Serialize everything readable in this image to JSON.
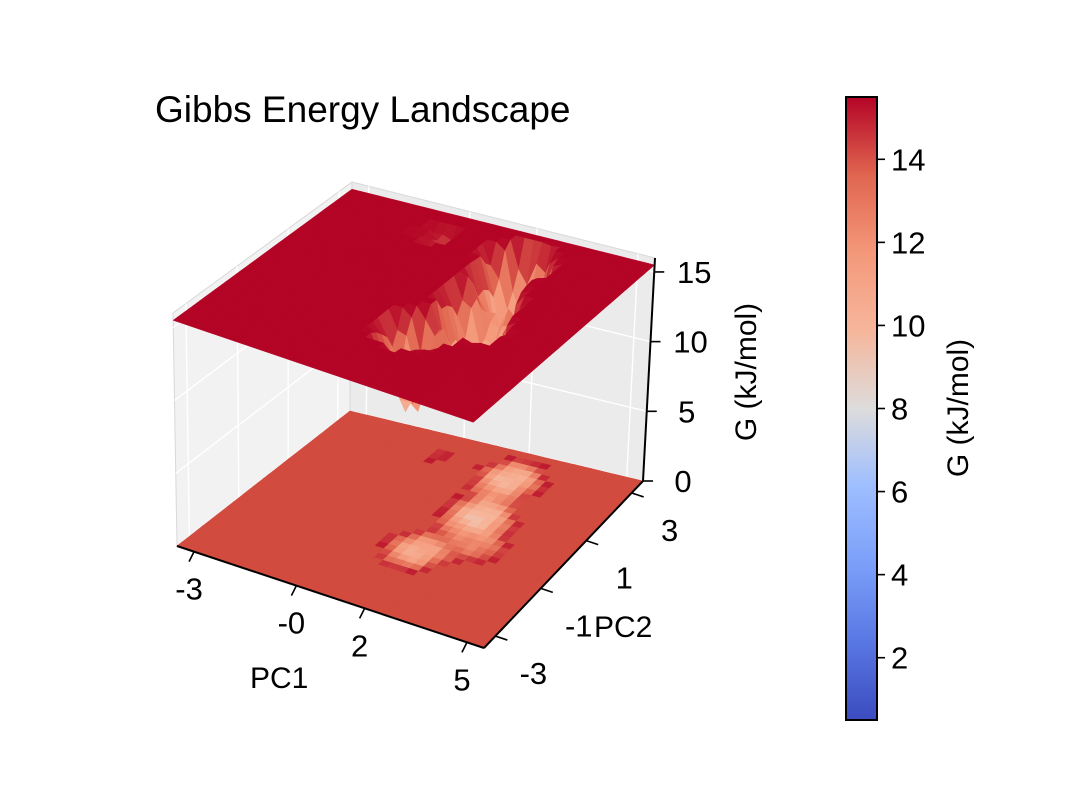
{
  "chart_data": {
    "type": "surface3d",
    "title": "Gibbs Energy Landscape",
    "xlabel": "PC1",
    "ylabel": "PC2",
    "zlabel": "G (kJ/mol)",
    "xticks": [
      "-3",
      "-0",
      "2",
      "5"
    ],
    "yticks": [
      "-3",
      "-1",
      "1",
      "3"
    ],
    "zticks": [
      "0",
      "5",
      "10",
      "15"
    ],
    "xlim": [
      -3.5,
      5.5
    ],
    "ylim": [
      -3.5,
      3.5
    ],
    "zlim": [
      0,
      16
    ],
    "cap_value": 15.5,
    "basins": [
      {
        "pc1": -0.3,
        "pc2": 2.6,
        "depth": 1.0
      },
      {
        "pc1": 2.2,
        "pc2": 2.4,
        "depth": 5.8
      },
      {
        "pc1": 2.4,
        "pc2": 0.8,
        "depth": 6.2
      },
      {
        "pc1": 3.2,
        "pc2": -0.2,
        "depth": 2.8
      },
      {
        "pc1": 1.8,
        "pc2": -1.0,
        "depth": 5.2
      }
    ],
    "colormap": "coolwarm",
    "colorbar": {
      "label": "G (kJ/mol)",
      "min": 0.5,
      "max": 15.5,
      "ticks": [
        "2",
        "4",
        "6",
        "8",
        "10",
        "12",
        "14"
      ]
    },
    "grid": true
  }
}
